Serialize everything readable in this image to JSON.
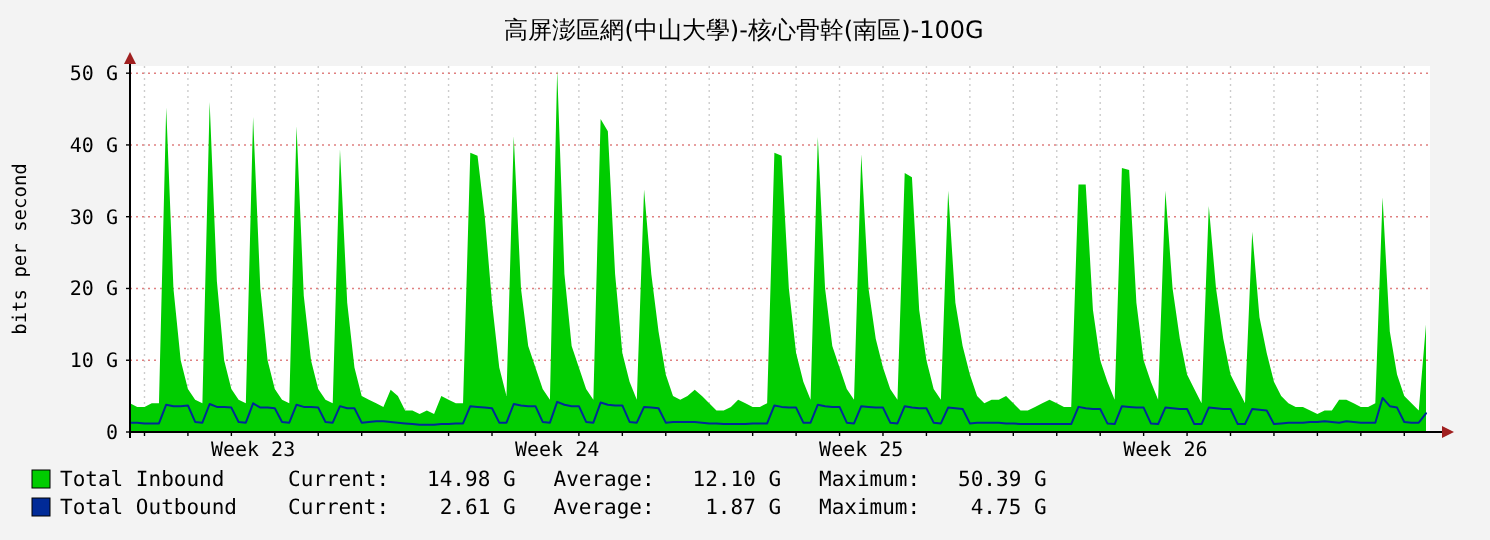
{
  "chart_data": {
    "type": "area",
    "title": "高屏澎區網(中山大學)-核心骨幹(南區)-100G",
    "ylabel": "bits per second",
    "ylim": [
      0,
      51
    ],
    "yticks": [
      0,
      {
        "value": 10,
        "label": "10 G"
      },
      {
        "value": 20,
        "label": "20 G"
      },
      {
        "value": 30,
        "label": "30 G"
      },
      {
        "value": 40,
        "label": "40 G"
      },
      {
        "value": 50,
        "label": "50 G"
      }
    ],
    "categories": [
      null,
      null,
      null,
      null,
      null,
      null,
      null,
      null,
      null,
      null,
      null,
      null,
      null,
      null,
      null,
      null,
      null,
      "Week 23",
      null,
      null,
      null,
      null,
      null,
      null,
      null,
      null,
      null,
      null,
      null,
      null,
      null,
      null,
      null,
      null,
      null,
      null,
      null,
      null,
      null,
      null,
      null,
      null,
      null,
      null,
      null,
      null,
      null,
      null,
      null,
      null,
      null,
      null,
      null,
      null,
      null,
      null,
      null,
      null,
      null,
      "Week 24",
      null,
      null,
      null,
      null,
      null,
      null,
      null,
      null,
      null,
      null,
      null,
      null,
      null,
      null,
      null,
      null,
      null,
      null,
      null,
      null,
      null,
      null,
      null,
      null,
      null,
      null,
      null,
      null,
      null,
      null,
      null,
      null,
      null,
      null,
      null,
      null,
      null,
      null,
      null,
      null,
      null,
      "Week 25",
      null,
      null,
      null,
      null,
      null,
      null,
      null,
      null,
      null,
      null,
      null,
      null,
      null,
      null,
      null,
      null,
      null,
      null,
      null,
      null,
      null,
      null,
      null,
      null,
      null,
      null,
      null,
      null,
      null,
      null,
      null,
      null,
      null,
      null,
      null,
      null,
      null,
      null,
      null,
      null,
      null,
      "Week 26",
      null,
      null,
      null,
      null,
      null,
      null,
      null,
      null,
      null,
      null,
      null,
      null,
      null,
      null,
      null,
      null,
      null,
      null,
      null,
      null,
      null,
      null,
      null,
      null,
      null,
      null,
      null,
      null,
      null,
      null,
      null,
      null,
      null,
      null,
      null,
      null
    ],
    "grid": true,
    "legend": "bottom",
    "annotations": [
      "Current:   14.98 G   Average:   12.10 G   Maximum:   50.39 G",
      "Current:    2.61 G   Average:    1.87 G   Maximum:    4.75 G"
    ],
    "series": [
      {
        "name": "Total Inbound",
        "color": "#00cc00",
        "values": [
          4,
          3.5,
          3.5,
          4,
          4,
          45.2,
          20,
          10,
          6,
          4.5,
          4,
          46,
          21,
          10,
          6,
          4.5,
          4,
          43.9,
          20,
          10,
          6,
          4.5,
          4,
          42.6,
          19,
          10,
          6,
          4.5,
          4,
          39.4,
          18,
          9,
          5,
          4.5,
          4,
          3.5,
          5.9,
          5,
          3,
          3,
          2.5,
          3,
          2.5,
          5,
          4.5,
          4,
          4,
          38.9,
          38.5,
          30,
          18,
          9,
          5,
          41.2,
          20,
          12,
          9,
          6,
          4.5,
          50.39,
          22,
          12,
          9,
          6,
          4.5,
          43.6,
          41.9,
          22,
          11,
          7,
          4.5,
          33.8,
          22,
          14,
          8,
          5,
          4.5,
          5,
          5.9,
          5,
          4,
          3,
          3,
          3.5,
          4.5,
          4,
          3.5,
          3.5,
          4,
          38.9,
          38.5,
          20,
          11,
          7,
          4.5,
          41.1,
          20,
          12,
          9,
          6,
          4.5,
          38.7,
          20,
          13,
          9,
          6,
          4.5,
          36.1,
          35.5,
          17,
          10,
          6,
          4.5,
          33.6,
          18,
          12,
          8,
          5,
          4,
          4.5,
          4.5,
          5,
          4,
          3,
          3,
          3.5,
          4,
          4.5,
          4,
          3.5,
          3.5,
          34.5,
          34.5,
          17,
          10,
          7,
          4.5,
          36.8,
          36.5,
          18,
          10,
          7,
          4.5,
          33.6,
          20,
          13,
          8,
          6,
          4,
          31.5,
          20,
          13,
          8,
          6,
          4,
          27.9,
          16,
          11,
          7,
          5,
          4,
          3.5,
          3.5,
          3,
          2.5,
          3,
          3,
          4.5,
          4.5,
          4,
          3.5,
          3.5,
          4,
          32.7,
          14,
          8,
          5,
          4,
          3,
          14.98
        ]
      },
      {
        "name": "Total Outbound",
        "type": "line",
        "color": "#002a97",
        "values": [
          1.3,
          1.3,
          1.2,
          1.2,
          1.2,
          3.8,
          3.6,
          3.6,
          3.7,
          1.4,
          1.3,
          3.9,
          3.5,
          3.5,
          3.4,
          1.4,
          1.3,
          4.0,
          3.4,
          3.4,
          3.3,
          1.4,
          1.3,
          3.8,
          3.5,
          3.5,
          3.4,
          1.4,
          1.3,
          3.6,
          3.3,
          3.3,
          1.3,
          1.4,
          1.5,
          1.5,
          1.4,
          1.3,
          1.2,
          1.1,
          1.0,
          1.0,
          1.0,
          1.1,
          1.1,
          1.2,
          1.2,
          3.6,
          3.5,
          3.4,
          3.3,
          1.3,
          1.3,
          3.9,
          3.7,
          3.6,
          3.6,
          1.4,
          1.3,
          4.2,
          3.8,
          3.6,
          3.6,
          1.4,
          1.3,
          4.1,
          3.8,
          3.7,
          3.7,
          1.4,
          1.3,
          3.5,
          3.4,
          3.3,
          1.3,
          1.4,
          1.4,
          1.4,
          1.4,
          1.3,
          1.2,
          1.2,
          1.1,
          1.1,
          1.1,
          1.1,
          1.2,
          1.2,
          1.2,
          3.7,
          3.5,
          3.4,
          3.4,
          1.3,
          1.3,
          3.8,
          3.6,
          3.5,
          3.5,
          1.3,
          1.2,
          3.6,
          3.5,
          3.4,
          3.4,
          1.3,
          1.2,
          3.6,
          3.4,
          3.3,
          3.3,
          1.3,
          1.2,
          3.4,
          3.3,
          3.2,
          1.2,
          1.3,
          1.3,
          1.3,
          1.3,
          1.2,
          1.2,
          1.1,
          1.1,
          1.1,
          1.1,
          1.1,
          1.1,
          1.1,
          1.1,
          3.5,
          3.3,
          3.2,
          3.2,
          1.2,
          1.1,
          3.6,
          3.5,
          3.4,
          3.4,
          1.2,
          1.1,
          3.4,
          3.3,
          3.2,
          3.2,
          1.1,
          1.1,
          3.4,
          3.3,
          3.2,
          3.2,
          1.1,
          1.1,
          3.2,
          3.1,
          3.0,
          1.1,
          1.2,
          1.3,
          1.3,
          1.3,
          1.4,
          1.4,
          1.5,
          1.4,
          1.3,
          1.5,
          1.4,
          1.3,
          1.3,
          1.3,
          4.75,
          3.6,
          3.4,
          1.4,
          1.3,
          1.3,
          2.61
        ]
      }
    ]
  }
}
